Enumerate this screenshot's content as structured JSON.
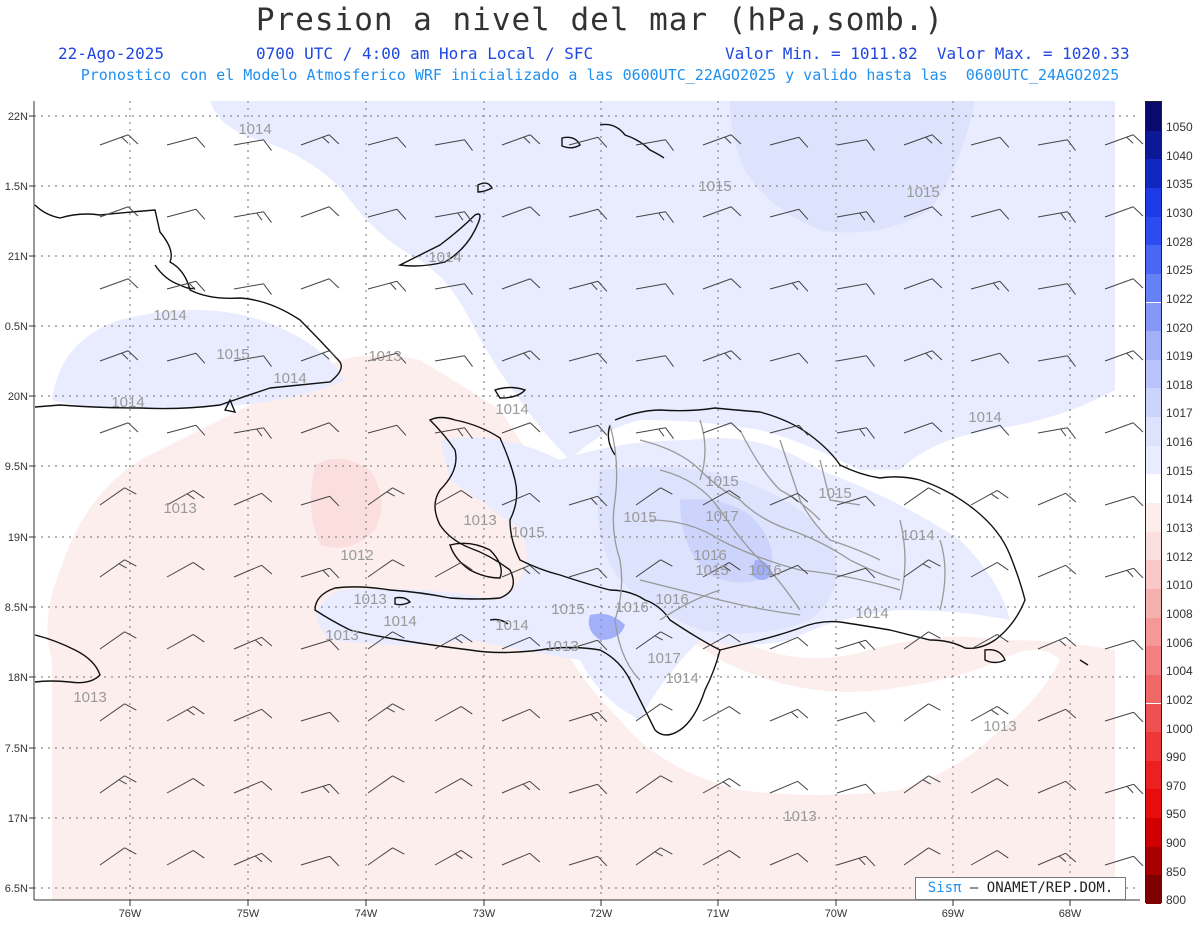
{
  "header": {
    "title": "Presion a nivel del mar (hPa,somb.)",
    "date": "22-Ago-2025",
    "time": "0700 UTC / 4:00 am Hora Local / SFC",
    "minmax": "Valor Min. = 1011.82  Valor Max. = 1020.33",
    "model_line": "Pronostico con el Modelo Atmosferico WRF inicializado a las 0600UTC_22AGO2025 y valido hasta las  0600UTC_24AGO2025"
  },
  "map": {
    "lat_labels": [
      "22N",
      "1.5N",
      "21N",
      "0.5N",
      "20N",
      "9.5N",
      "19N",
      "8.5N",
      "18N",
      "7.5N",
      "17N",
      "6.5N"
    ],
    "lon_labels": [
      "76W",
      "75W",
      "74W",
      "73W",
      "72W",
      "71W",
      "70W",
      "69W",
      "68W"
    ],
    "contour_labels": [
      {
        "text": "1014"
      },
      {
        "text": "1014"
      },
      {
        "text": "1014"
      },
      {
        "text": "1015"
      },
      {
        "text": "1014"
      },
      {
        "text": "1014"
      },
      {
        "text": "1013"
      },
      {
        "text": "1015"
      },
      {
        "text": "1015"
      },
      {
        "text": "1014"
      },
      {
        "text": "1014"
      },
      {
        "text": "1013"
      },
      {
        "text": "1012"
      },
      {
        "text": "1013"
      },
      {
        "text": "1015"
      },
      {
        "text": "1015"
      },
      {
        "text": "1015"
      },
      {
        "text": "1017"
      },
      {
        "text": "1016"
      },
      {
        "text": "1015"
      },
      {
        "text": "1016"
      },
      {
        "text": "1015"
      },
      {
        "text": "1014"
      },
      {
        "text": "1013"
      },
      {
        "text": "1014"
      },
      {
        "text": "1013"
      },
      {
        "text": "1014"
      },
      {
        "text": "1015"
      },
      {
        "text": "1016"
      },
      {
        "text": "1016"
      },
      {
        "text": "1013"
      },
      {
        "text": "1017"
      },
      {
        "text": "1014"
      },
      {
        "text": "1014"
      },
      {
        "text": "1013"
      },
      {
        "text": "1013"
      },
      {
        "text": "1013"
      }
    ]
  },
  "legend": {
    "levels": [
      {
        "value": "1050",
        "color": "#0a0a6e"
      },
      {
        "value": "1040",
        "color": "#0c1896"
      },
      {
        "value": "1035",
        "color": "#1028c0"
      },
      {
        "value": "1030",
        "color": "#1c3ae6"
      },
      {
        "value": "1028",
        "color": "#2d4cf0"
      },
      {
        "value": "1025",
        "color": "#4a66f4"
      },
      {
        "value": "1022",
        "color": "#6680f6"
      },
      {
        "value": "1020",
        "color": "#8598f8"
      },
      {
        "value": "1019",
        "color": "#a2b0fa"
      },
      {
        "value": "1018",
        "color": "#b8c4fb"
      },
      {
        "value": "1017",
        "color": "#cdd4fc"
      },
      {
        "value": "1016",
        "color": "#dde2fd"
      },
      {
        "value": "1015",
        "color": "#e9ecfe"
      },
      {
        "value": "1014",
        "color": "#ffffff"
      },
      {
        "value": "1013",
        "color": "#fdeeee"
      },
      {
        "value": "1012",
        "color": "#fbdede"
      },
      {
        "value": "1010",
        "color": "#f9c8c8"
      },
      {
        "value": "1008",
        "color": "#f7b0b0"
      },
      {
        "value": "1006",
        "color": "#f59898"
      },
      {
        "value": "1004",
        "color": "#f38080"
      },
      {
        "value": "1002",
        "color": "#f16868"
      },
      {
        "value": "1000",
        "color": "#ef5050"
      },
      {
        "value": "990",
        "color": "#ee3838"
      },
      {
        "value": "970",
        "color": "#ec2020"
      },
      {
        "value": "950",
        "color": "#e80c0c"
      },
      {
        "value": "900",
        "color": "#d00000"
      },
      {
        "value": "850",
        "color": "#a80000"
      },
      {
        "value": "800",
        "color": "#7e0000"
      }
    ]
  },
  "credit": {
    "sis": "Sisπ",
    "text": "– ONAMET/REP.DOM."
  }
}
